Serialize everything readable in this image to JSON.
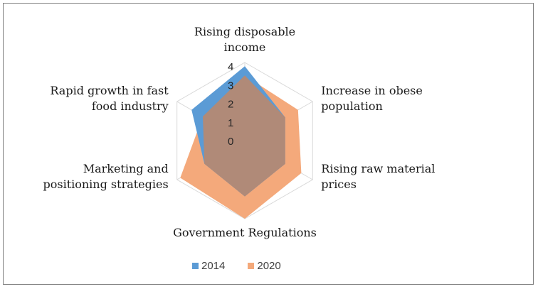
{
  "chart_data": {
    "type": "radar",
    "categories": [
      [
        "Rising disposable",
        "income"
      ],
      [
        "Increase in obese",
        "population"
      ],
      [
        "Rising raw material",
        "prices"
      ],
      [
        "Government Regulations"
      ],
      [
        "Marketing and",
        "positioning strategies"
      ],
      [
        "Rapid growth in fast",
        "food industry"
      ]
    ],
    "series": [
      {
        "name": "2014",
        "color": "#5b9bd5",
        "values": [
          4.0,
          2.5,
          2.5,
          3.0,
          2.5,
          3.3
        ]
      },
      {
        "name": "2020",
        "color": "#f4a97b",
        "values": [
          3.5,
          3.3,
          3.5,
          4.2,
          4.0,
          2.6
        ]
      }
    ],
    "overlap_color": "#b08a78",
    "radial_ticks": [
      "0",
      "1",
      "2",
      "3",
      "4"
    ],
    "rmax": 4.2,
    "grid": true,
    "legend_position": "bottom"
  }
}
